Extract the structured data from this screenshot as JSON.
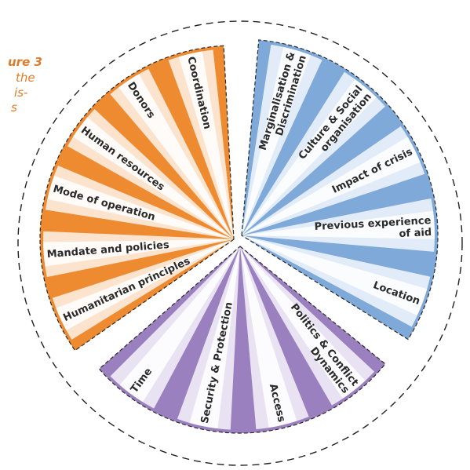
{
  "caption": {
    "title": "ure 3",
    "line1": "the",
    "line2": "is-",
    "line3": "s"
  },
  "colors": {
    "orange": "#ee8a2f",
    "orange_light": "#fbe3cd",
    "blue": "#7fa9d9",
    "blue_light": "#e1ecf8",
    "purple": "#9a80bf",
    "purple_light": "#e9e2f2"
  },
  "groups": [
    {
      "name": "orange",
      "segments": [
        {
          "label": [
            "Humanitarian principles"
          ]
        },
        {
          "label": [
            "Mandate and policies"
          ]
        },
        {
          "label": [
            "Mode of operation"
          ]
        },
        {
          "label": [
            "Human resources"
          ]
        },
        {
          "label": [
            "Donors"
          ]
        },
        {
          "label": [
            "Coordination"
          ]
        }
      ]
    },
    {
      "name": "blue",
      "segments": [
        {
          "label": [
            "Marginalisation &",
            "Discrimination"
          ]
        },
        {
          "label": [
            "Culture & Social",
            "organisation"
          ]
        },
        {
          "label": [
            "Impact of crisis"
          ]
        },
        {
          "label": [
            "Previous experience",
            "of aid"
          ]
        },
        {
          "label": [
            "Location"
          ]
        }
      ]
    },
    {
      "name": "purple",
      "segments": [
        {
          "label": [
            "Politics & Conflict",
            "Dynamics"
          ]
        },
        {
          "label": [
            "Access"
          ]
        },
        {
          "label": [
            "Security & Protection"
          ]
        },
        {
          "label": [
            "Time"
          ]
        }
      ]
    }
  ]
}
